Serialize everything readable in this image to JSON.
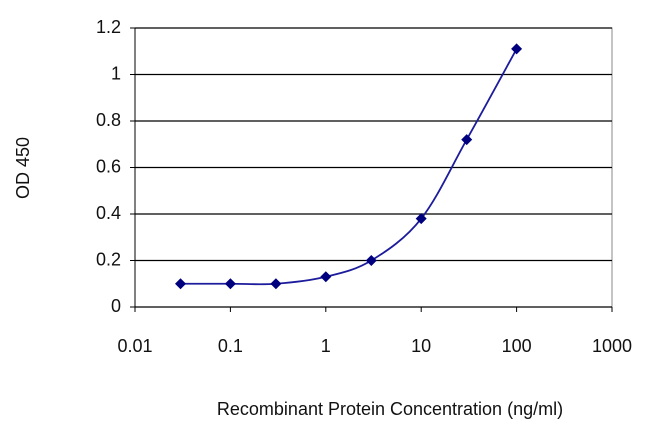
{
  "chart_data": {
    "type": "line",
    "x_label": "Recombinant Protein Concentration (ng/ml)",
    "y_label": "OD 450",
    "x": [
      0.03,
      0.1,
      0.3,
      1,
      3,
      10,
      30,
      100
    ],
    "series": [
      {
        "name": "OD 450",
        "color": "#1c1c9c",
        "marker_color": "#00007f",
        "values": [
          0.1,
          0.1,
          0.1,
          0.13,
          0.2,
          0.38,
          0.72,
          1.11
        ]
      }
    ],
    "xlim": [
      0.01,
      1000
    ],
    "xticks": [
      0.01,
      0.1,
      1,
      10,
      100,
      1000
    ],
    "log_x": true,
    "ylim": [
      0,
      1.2
    ],
    "yticks": [
      0,
      0.2,
      0.4,
      0.6,
      0.8,
      1,
      1.2
    ],
    "grid": true
  }
}
